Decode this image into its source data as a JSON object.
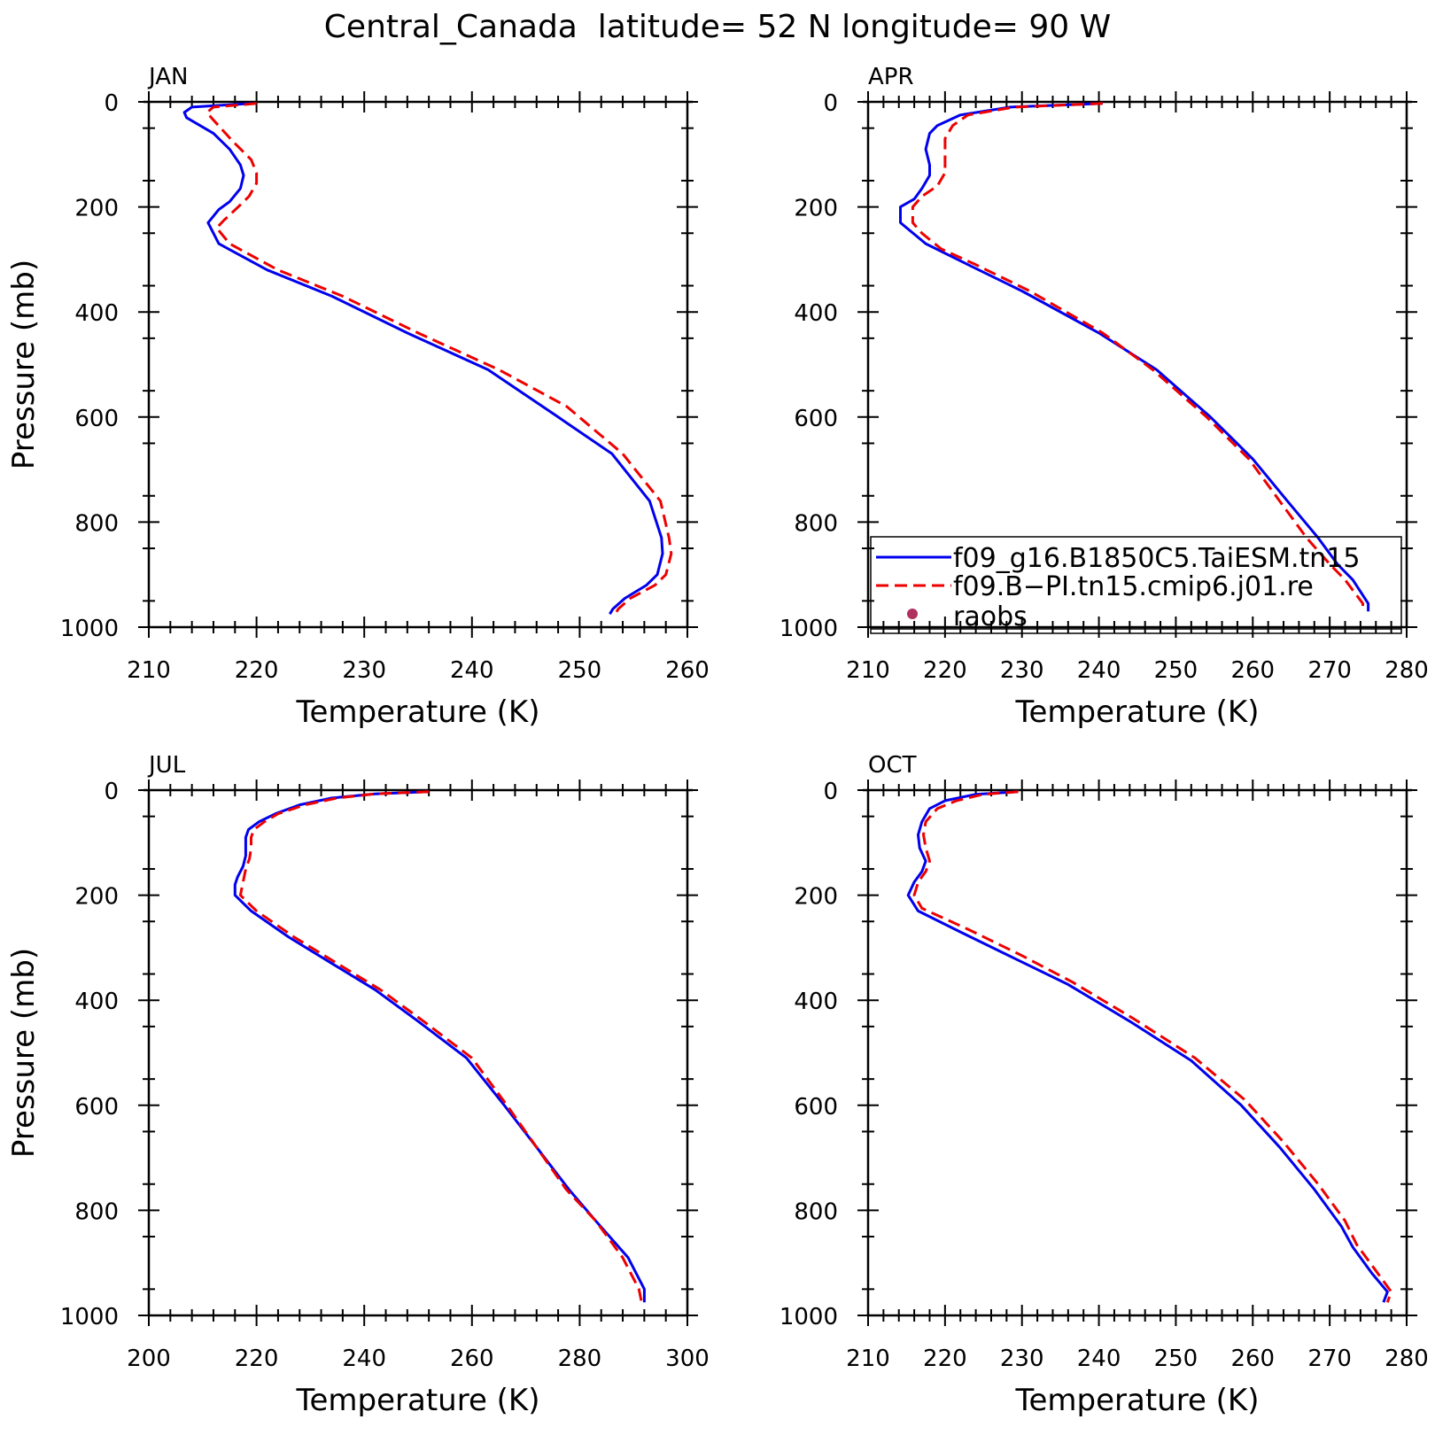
{
  "title": "Central_Canada  latitude= 52 N longitude= 90 W",
  "legend": {
    "placement": "inside APR panel, lower-right",
    "entries": [
      {
        "label": "f09_g16.B1850C5.TaiESM.tn15",
        "style": "solid",
        "color": "#0000ee"
      },
      {
        "label": "f09.B−PI.tn15.cmip6.j01.re",
        "style": "dashed",
        "color": "#ee0000"
      },
      {
        "label": "raobs",
        "style": "dot",
        "color": "#b03060"
      }
    ]
  },
  "chart_data": [
    {
      "type": "line",
      "panel": "JAN",
      "xlabel": "Temperature (K)",
      "ylabel": "Pressure (mb)",
      "xlim": [
        210,
        260
      ],
      "ylim": [
        1000,
        0
      ],
      "xticks": [
        210,
        220,
        230,
        240,
        250,
        260
      ],
      "yticks": [
        0,
        200,
        400,
        600,
        800,
        1000
      ],
      "grid": false,
      "series": [
        {
          "name": "f09_g16.B1850C5.TaiESM.tn15",
          "color": "#0000ee",
          "dash": false,
          "points": [
            [
              219.5,
              3
            ],
            [
              214,
              10
            ],
            [
              213.3,
              20
            ],
            [
              213.5,
              30
            ],
            [
              216,
              60
            ],
            [
              217.5,
              90
            ],
            [
              218.5,
              120
            ],
            [
              218.8,
              140
            ],
            [
              218.5,
              165
            ],
            [
              217.5,
              190
            ],
            [
              216.5,
              205
            ],
            [
              215.5,
              230
            ],
            [
              216.5,
              270
            ],
            [
              221,
              320
            ],
            [
              227,
              370
            ],
            [
              234,
              440
            ],
            [
              241.5,
              510
            ],
            [
              248,
              600
            ],
            [
              253,
              670
            ],
            [
              256.5,
              760
            ],
            [
              257.6,
              830
            ],
            [
              257.7,
              860
            ],
            [
              257.2,
              900
            ],
            [
              256.2,
              920
            ],
            [
              254.2,
              945
            ],
            [
              253.1,
              965
            ],
            [
              252.8,
              975
            ]
          ]
        },
        {
          "name": "f09.B−PI.tn15.cmip6.j01.re",
          "color": "#ee0000",
          "dash": true,
          "points": [
            [
              220,
              3
            ],
            [
              216,
              10
            ],
            [
              215.4,
              20
            ],
            [
              215.8,
              30
            ],
            [
              217.8,
              75
            ],
            [
              219.5,
              110
            ],
            [
              220,
              135
            ],
            [
              220,
              155
            ],
            [
              219.3,
              180
            ],
            [
              218.3,
              200
            ],
            [
              217,
              225
            ],
            [
              216.3,
              240
            ],
            [
              217.5,
              270
            ],
            [
              222,
              320
            ],
            [
              228,
              370
            ],
            [
              235,
              440
            ],
            [
              242.5,
              510
            ],
            [
              248.8,
              580
            ],
            [
              254,
              670
            ],
            [
              257.5,
              760
            ],
            [
              258.3,
              830
            ],
            [
              258.5,
              860
            ],
            [
              258,
              900
            ],
            [
              257,
              920
            ],
            [
              254.7,
              945
            ],
            [
              253.6,
              965
            ],
            [
              253.3,
              975
            ]
          ]
        }
      ]
    },
    {
      "type": "line",
      "panel": "APR",
      "xlabel": "Temperature (K)",
      "ylabel": "",
      "xlim": [
        210,
        280
      ],
      "ylim": [
        1000,
        0
      ],
      "xticks": [
        210,
        220,
        230,
        240,
        250,
        260,
        270,
        280
      ],
      "yticks": [
        0,
        200,
        400,
        600,
        800,
        1000
      ],
      "grid": false,
      "series": [
        {
          "name": "f09_g16.B1850C5.TaiESM.tn15",
          "color": "#0000ee",
          "dash": false,
          "points": [
            [
              240.5,
              3
            ],
            [
              228.5,
              10
            ],
            [
              222,
              25
            ],
            [
              219,
              45
            ],
            [
              218,
              60
            ],
            [
              217.5,
              90
            ],
            [
              218,
              120
            ],
            [
              218,
              140
            ],
            [
              217,
              165
            ],
            [
              216,
              185
            ],
            [
              214.2,
              200
            ],
            [
              214.2,
              230
            ],
            [
              217.5,
              270
            ],
            [
              223,
              310
            ],
            [
              230,
              360
            ],
            [
              240,
              440
            ],
            [
              247.5,
              510
            ],
            [
              254.5,
              600
            ],
            [
              260,
              680
            ],
            [
              264.5,
              760
            ],
            [
              268.5,
              830
            ],
            [
              271,
              880
            ],
            [
              273,
              910
            ],
            [
              275,
              955
            ],
            [
              275,
              970
            ]
          ]
        },
        {
          "name": "f09.B−PI.tn15.cmip6.j01.re",
          "color": "#ee0000",
          "dash": true,
          "points": [
            [
              240.5,
              3
            ],
            [
              229,
              10
            ],
            [
              223,
              25
            ],
            [
              221,
              45
            ],
            [
              220,
              70
            ],
            [
              220,
              110
            ],
            [
              220,
              135
            ],
            [
              219,
              160
            ],
            [
              217,
              180
            ],
            [
              215.8,
              200
            ],
            [
              215.8,
              230
            ],
            [
              217,
              250
            ],
            [
              219.5,
              280
            ],
            [
              224,
              310
            ],
            [
              231,
              360
            ],
            [
              240.5,
              440
            ],
            [
              247,
              510
            ],
            [
              254,
              600
            ],
            [
              259.5,
              680
            ],
            [
              263.5,
              760
            ],
            [
              267,
              830
            ],
            [
              270,
              880
            ],
            [
              272,
              910
            ],
            [
              274.3,
              955
            ],
            [
              274.3,
              970
            ]
          ]
        }
      ]
    },
    {
      "type": "line",
      "panel": "JUL",
      "xlabel": "Temperature (K)",
      "ylabel": "Pressure (mb)",
      "xlim": [
        200,
        300
      ],
      "ylim": [
        1000,
        0
      ],
      "xticks": [
        200,
        220,
        240,
        260,
        280,
        300
      ],
      "yticks": [
        0,
        200,
        400,
        600,
        800,
        1000
      ],
      "grid": false,
      "series": [
        {
          "name": "f09_g16.B1850C5.TaiESM.tn15",
          "color": "#0000ee",
          "dash": false,
          "points": [
            [
              252,
              3
            ],
            [
              242,
              7
            ],
            [
              234,
              15
            ],
            [
              228,
              28
            ],
            [
              223.5,
              45
            ],
            [
              220.5,
              60
            ],
            [
              218.5,
              75
            ],
            [
              218,
              90
            ],
            [
              218,
              110
            ],
            [
              218,
              125
            ],
            [
              217.5,
              145
            ],
            [
              216.5,
              165
            ],
            [
              216,
              180
            ],
            [
              216,
              200
            ],
            [
              219,
              230
            ],
            [
              226,
              280
            ],
            [
              234,
              330
            ],
            [
              242,
              380
            ],
            [
              250,
              440
            ],
            [
              259,
              510
            ],
            [
              266,
              600
            ],
            [
              272,
              680
            ],
            [
              278,
              760
            ],
            [
              283,
              820
            ],
            [
              289,
              890
            ],
            [
              292,
              950
            ],
            [
              292,
              975
            ]
          ]
        },
        {
          "name": "f09.B−PI.tn15.cmip6.j01.re",
          "color": "#ee0000",
          "dash": true,
          "points": [
            [
              252,
              3
            ],
            [
              242,
              7
            ],
            [
              235,
              15
            ],
            [
              229,
              28
            ],
            [
              224,
              45
            ],
            [
              221.5,
              60
            ],
            [
              219.5,
              75
            ],
            [
              219,
              90
            ],
            [
              219,
              110
            ],
            [
              218.7,
              130
            ],
            [
              218,
              150
            ],
            [
              217.5,
              175
            ],
            [
              217,
              200
            ],
            [
              220,
              230
            ],
            [
              227,
              280
            ],
            [
              235,
              330
            ],
            [
              243,
              380
            ],
            [
              251,
              440
            ],
            [
              260,
              510
            ],
            [
              266.5,
              600
            ],
            [
              272,
              680
            ],
            [
              277.5,
              760
            ],
            [
              283,
              820
            ],
            [
              288,
              890
            ],
            [
              291,
              950
            ],
            [
              291.5,
              975
            ]
          ]
        }
      ]
    },
    {
      "type": "line",
      "panel": "OCT",
      "xlabel": "Temperature (K)",
      "ylabel": "",
      "xlim": [
        210,
        280
      ],
      "ylim": [
        1000,
        0
      ],
      "xticks": [
        210,
        220,
        230,
        240,
        250,
        260,
        270,
        280
      ],
      "yticks": [
        0,
        200,
        400,
        600,
        800,
        1000
      ],
      "grid": false,
      "series": [
        {
          "name": "f09_g16.B1850C5.TaiESM.tn15",
          "color": "#0000ee",
          "dash": false,
          "points": [
            [
              229.5,
              3
            ],
            [
              224,
              8
            ],
            [
              220,
              20
            ],
            [
              218,
              35
            ],
            [
              217,
              60
            ],
            [
              216.5,
              85
            ],
            [
              216.7,
              110
            ],
            [
              217.5,
              135
            ],
            [
              217,
              155
            ],
            [
              216,
              175
            ],
            [
              215.2,
              200
            ],
            [
              216.5,
              230
            ],
            [
              222,
              270
            ],
            [
              229,
              320
            ],
            [
              236,
              370
            ],
            [
              244,
              440
            ],
            [
              252,
              515
            ],
            [
              258.5,
              600
            ],
            [
              263.5,
              680
            ],
            [
              268,
              760
            ],
            [
              271.5,
              830
            ],
            [
              273,
              870
            ],
            [
              275.5,
              920
            ],
            [
              277.5,
              955
            ],
            [
              277,
              975
            ]
          ]
        },
        {
          "name": "f09.B−PI.tn15.cmip6.j01.re",
          "color": "#ee0000",
          "dash": true,
          "points": [
            [
              229.5,
              3
            ],
            [
              225,
              8
            ],
            [
              221.5,
              20
            ],
            [
              219,
              35
            ],
            [
              217.5,
              60
            ],
            [
              217.2,
              85
            ],
            [
              217.5,
              110
            ],
            [
              218,
              135
            ],
            [
              217.5,
              155
            ],
            [
              216.5,
              175
            ],
            [
              216,
              200
            ],
            [
              217,
              225
            ],
            [
              223,
              265
            ],
            [
              230,
              315
            ],
            [
              236.5,
              365
            ],
            [
              244.5,
              435
            ],
            [
              252.5,
              510
            ],
            [
              259,
              590
            ],
            [
              264,
              670
            ],
            [
              268.5,
              750
            ],
            [
              272,
              820
            ],
            [
              273.5,
              865
            ],
            [
              276,
              915
            ],
            [
              278,
              955
            ],
            [
              277.5,
              975
            ]
          ]
        }
      ]
    }
  ]
}
